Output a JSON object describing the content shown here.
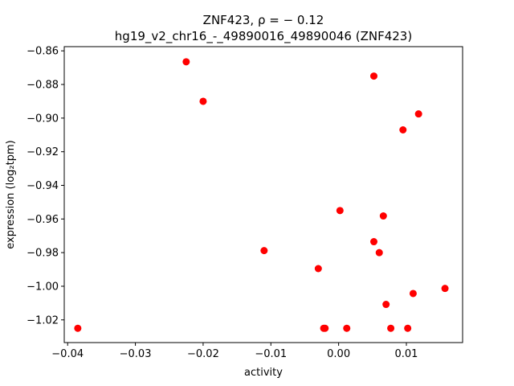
{
  "chart_data": {
    "type": "scatter",
    "title_lines": [
      "ZNF423, ρ = − 0.12",
      "hg19_v2_chr16_-_49890016_49890046 (ZNF423)"
    ],
    "xlabel": "activity",
    "ylabel": "expression (log₂tpm)",
    "xlim": [
      -0.0405,
      0.0183
    ],
    "ylim": [
      -1.0335,
      -0.8575
    ],
    "x_ticks": [
      -0.04,
      -0.03,
      -0.02,
      -0.01,
      0.0,
      0.01
    ],
    "x_tick_labels": [
      "−0.04",
      "−0.03",
      "−0.02",
      "−0.01",
      "0.00",
      "0.01"
    ],
    "y_ticks": [
      -0.86,
      -0.88,
      -0.9,
      -0.92,
      -0.94,
      -0.96,
      -0.98,
      -1.0,
      -1.02
    ],
    "y_tick_labels": [
      "−0.86",
      "−0.88",
      "−0.90",
      "−0.92",
      "−0.94",
      "−0.96",
      "−0.98",
      "−1.00",
      "−1.02"
    ],
    "grid": false,
    "legend": "none",
    "marker_color": "#ff0000",
    "points": [
      {
        "x": -0.0225,
        "y": -0.8665
      },
      {
        "x": -0.02,
        "y": -0.89
      },
      {
        "x": 0.0052,
        "y": -0.875
      },
      {
        "x": 0.0118,
        "y": -0.8975
      },
      {
        "x": 0.0095,
        "y": -0.907
      },
      {
        "x": 0.0002,
        "y": -0.955
      },
      {
        "x": 0.0066,
        "y": -0.9582
      },
      {
        "x": 0.0052,
        "y": -0.9735
      },
      {
        "x": 0.006,
        "y": -0.98
      },
      {
        "x": -0.011,
        "y": -0.9788
      },
      {
        "x": -0.003,
        "y": -0.9895
      },
      {
        "x": 0.0157,
        "y": -1.0013
      },
      {
        "x": 0.011,
        "y": -1.0043
      },
      {
        "x": 0.007,
        "y": -1.0108
      },
      {
        "x": -0.0385,
        "y": -1.025
      },
      {
        "x": -0.0022,
        "y": -1.025
      },
      {
        "x": -0.002,
        "y": -1.025
      },
      {
        "x": 0.0012,
        "y": -1.025
      },
      {
        "x": 0.0077,
        "y": -1.025
      },
      {
        "x": 0.0102,
        "y": -1.025
      }
    ]
  }
}
